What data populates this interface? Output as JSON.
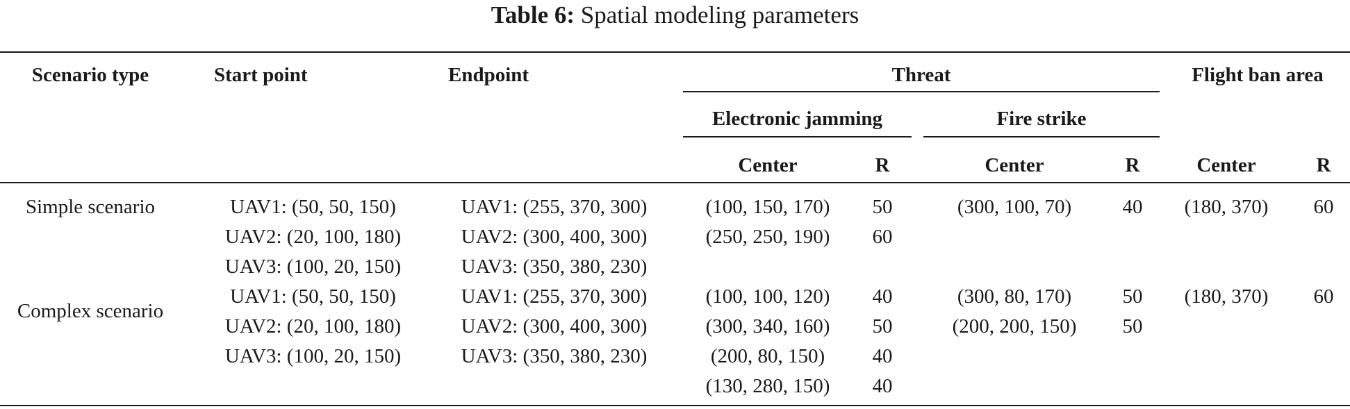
{
  "caption": {
    "label": "Table 6:",
    "title": "Spatial modeling parameters"
  },
  "headers": {
    "scenario_type": "Scenario type",
    "start_point": "Start point",
    "endpoint": "Endpoint",
    "threat": "Threat",
    "flight_ban_area": "Flight ban area",
    "electronic_jamming": "Electronic jamming",
    "fire_strike": "Fire strike",
    "center": "Center",
    "r": "R"
  },
  "rows": {
    "simple": {
      "scenario": "Simple scenario",
      "start": [
        "UAV1: (50, 50, 150)",
        "UAV2: (20, 100, 180)",
        "UAV3: (100, 20, 150)"
      ],
      "end": [
        "UAV1: (255, 370, 300)",
        "UAV2: (300, 400, 300)",
        "UAV3: (350, 380, 230)"
      ],
      "jamming_center": [
        "(100, 150, 170)",
        "(250, 250, 190)"
      ],
      "jamming_r": [
        "50",
        "60"
      ],
      "fire_center": [
        "(300, 100, 70)"
      ],
      "fire_r": [
        "40"
      ],
      "ban_center": [
        "(180, 370)"
      ],
      "ban_r": [
        "60"
      ]
    },
    "complex": {
      "scenario": "Complex scenario",
      "start": [
        "UAV1: (50, 50, 150)",
        "UAV2: (20, 100, 180)",
        "UAV3: (100, 20, 150)"
      ],
      "end": [
        "UAV1: (255, 370, 300)",
        "UAV2: (300, 400, 300)",
        "UAV3: (350, 380, 230)"
      ],
      "jamming_center": [
        "(100, 100, 120)",
        "(300, 340, 160)",
        "(200, 80, 150)",
        "(130, 280, 150)"
      ],
      "jamming_r": [
        "40",
        "50",
        "40",
        "40"
      ],
      "fire_center": [
        "(300, 80, 170)",
        "(200, 200, 150)"
      ],
      "fire_r": [
        "50",
        "50"
      ],
      "ban_center": [
        "(180, 370)"
      ],
      "ban_r": [
        "60"
      ]
    }
  }
}
